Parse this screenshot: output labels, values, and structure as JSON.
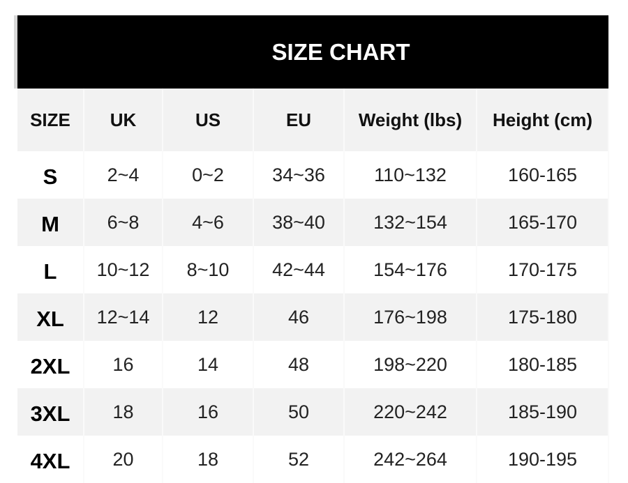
{
  "title": "SIZE CHART",
  "headers": [
    "SIZE",
    "UK",
    "US",
    "EU",
    "Weight (lbs)",
    "Height (cm)"
  ],
  "rows": [
    [
      "S",
      "2~4",
      "0~2",
      "34~36",
      "110~132",
      "160-165"
    ],
    [
      "M",
      "6~8",
      "4~6",
      "38~40",
      "132~154",
      "165-170"
    ],
    [
      "L",
      "10~12",
      "8~10",
      "42~44",
      "154~176",
      "170-175"
    ],
    [
      "XL",
      "12~14",
      "12",
      "46",
      "176~198",
      "175-180"
    ],
    [
      "2XL",
      "16",
      "14",
      "48",
      "198~220",
      "180-185"
    ],
    [
      "3XL",
      "18",
      "16",
      "50",
      "220~242",
      "185-190"
    ],
    [
      "4XL",
      "20",
      "18",
      "52",
      "242~264",
      "190-195"
    ]
  ],
  "colors": {
    "title_bg": "#000000",
    "title_text": "#ffffff",
    "stripe": "#f2f2f2"
  }
}
